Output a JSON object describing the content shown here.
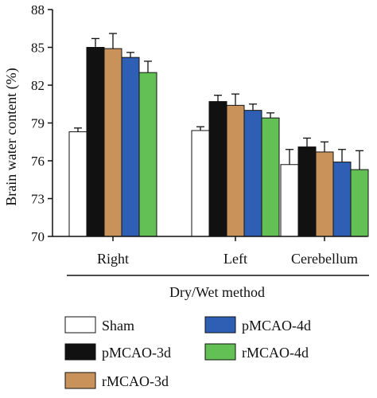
{
  "chart_data": {
    "type": "bar",
    "ylabel": "Brain water content (%)",
    "xlabel": "Dry/Wet method",
    "ylim": [
      70,
      88
    ],
    "yticks": [
      70,
      73,
      76,
      79,
      82,
      85,
      88
    ],
    "categories": [
      "Right",
      "Left",
      "Cerebellum"
    ],
    "legend_position": "bottom",
    "series": [
      {
        "name": "Sham",
        "color": "#ffffff",
        "values": [
          78.3,
          78.4,
          75.7
        ],
        "errors": [
          0.3,
          0.3,
          1.2
        ]
      },
      {
        "name": "pMCAO-3d",
        "color": "#111111",
        "values": [
          85.0,
          80.7,
          77.1
        ],
        "errors": [
          0.7,
          0.5,
          0.7
        ]
      },
      {
        "name": "rMCAO-3d",
        "color": "#c8925a",
        "values": [
          84.9,
          80.4,
          76.7
        ],
        "errors": [
          1.2,
          0.9,
          0.8
        ]
      },
      {
        "name": "pMCAO-4d",
        "color": "#2f5fb5",
        "values": [
          84.2,
          80.0,
          75.9
        ],
        "errors": [
          0.4,
          0.5,
          1.0
        ]
      },
      {
        "name": "rMCAO-4d",
        "color": "#62c055",
        "values": [
          83.0,
          79.4,
          75.3
        ],
        "errors": [
          0.9,
          0.4,
          1.5
        ]
      }
    ]
  }
}
